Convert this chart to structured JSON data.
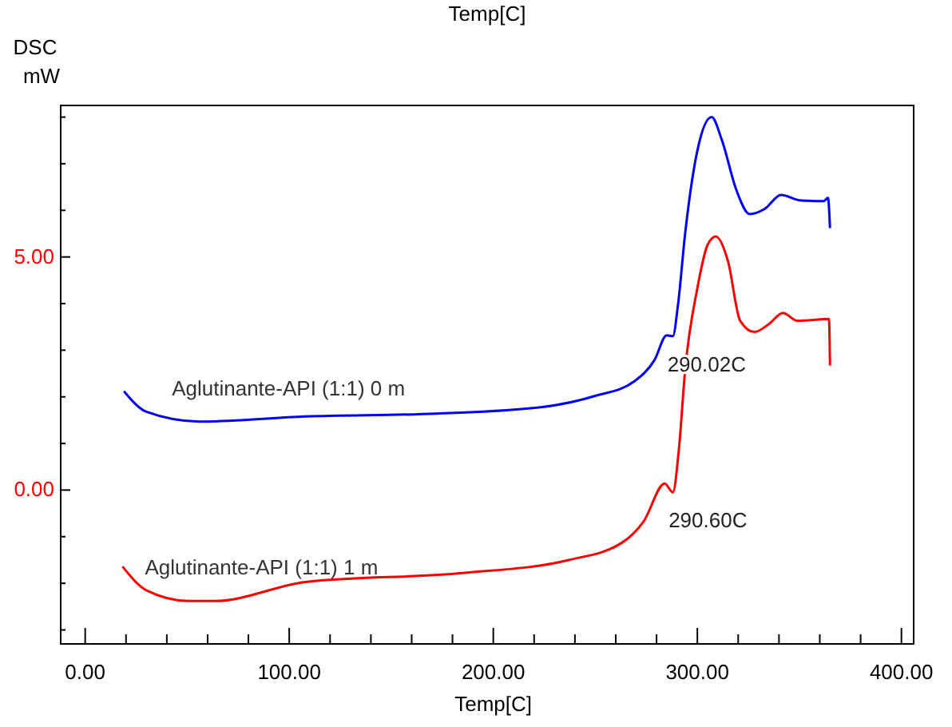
{
  "chart_data": {
    "type": "line",
    "xlabel": "Temp[C]",
    "x2label": "Temp[C]",
    "ylabel": "DSC\nmW",
    "xlim": [
      -12,
      406
    ],
    "ylim": [
      -3.3,
      8.25
    ],
    "xticks": [
      {
        "value": 0,
        "label": "0.00"
      },
      {
        "value": 20,
        "label": null
      },
      {
        "value": 40,
        "label": null
      },
      {
        "value": 60,
        "label": null
      },
      {
        "value": 80,
        "label": null
      },
      {
        "value": 100,
        "label": "100.00"
      },
      {
        "value": 120,
        "label": null
      },
      {
        "value": 140,
        "label": null
      },
      {
        "value": 160,
        "label": null
      },
      {
        "value": 180,
        "label": null
      },
      {
        "value": 200,
        "label": "200.00"
      },
      {
        "value": 220,
        "label": null
      },
      {
        "value": 240,
        "label": null
      },
      {
        "value": 260,
        "label": null
      },
      {
        "value": 280,
        "label": null
      },
      {
        "value": 300,
        "label": "300.00"
      },
      {
        "value": 320,
        "label": null
      },
      {
        "value": 340,
        "label": null
      },
      {
        "value": 360,
        "label": null
      },
      {
        "value": 380,
        "label": null
      },
      {
        "value": 400,
        "label": "400.00"
      }
    ],
    "yticks": [
      {
        "value": -3,
        "label": null
      },
      {
        "value": -2,
        "label": null
      },
      {
        "value": -1,
        "label": null
      },
      {
        "value": 0,
        "label": "0.00"
      },
      {
        "value": 1,
        "label": null
      },
      {
        "value": 2,
        "label": null
      },
      {
        "value": 3,
        "label": null
      },
      {
        "value": 4,
        "label": null
      },
      {
        "value": 5,
        "label": "5.00"
      },
      {
        "value": 6,
        "label": null
      },
      {
        "value": 7,
        "label": null
      },
      {
        "value": 8,
        "label": null
      }
    ],
    "grid": false,
    "marker": "none",
    "line_style": "solid",
    "series": [
      {
        "name": "Aglutinante-API (1:1) 0 m",
        "color": "#0000ff",
        "x": [
          19,
          30,
          56,
          108,
          172,
          224,
          250,
          269,
          279,
          285,
          288,
          290.5,
          294,
          300,
          307,
          312,
          319,
          325.6,
          333,
          341,
          351,
          362,
          364,
          365
        ],
        "values": [
          2.12,
          1.68,
          1.47,
          1.58,
          1.64,
          1.78,
          2.02,
          2.33,
          2.79,
          3.32,
          3.3,
          3.97,
          5.5,
          7.28,
          8.0,
          7.51,
          6.45,
          5.92,
          6.03,
          6.33,
          6.21,
          6.2,
          6.27,
          5.62
        ]
      },
      {
        "name": "Aglutinante-API (1:1) 1 m",
        "color": "#ff0000",
        "x": [
          18.3,
          30,
          50.7,
          63.5,
          108,
          185,
          237,
          263,
          273.7,
          284,
          288,
          291,
          294,
          300,
          305,
          309,
          315,
          321,
          328,
          335,
          342,
          349,
          364.5,
          365
        ],
        "values": [
          -1.64,
          -2.15,
          -2.38,
          -2.38,
          -1.97,
          -1.78,
          -1.5,
          -1.13,
          -0.67,
          0.14,
          -0.05,
          0.9,
          2.57,
          4.33,
          5.26,
          5.44,
          4.91,
          3.63,
          3.39,
          3.56,
          3.8,
          3.63,
          3.67,
          2.67
        ]
      }
    ],
    "annotations": [
      {
        "text": "290.02C",
        "x": 290.02,
        "y": 3.3
      },
      {
        "text": "290.60C",
        "x": 290.6,
        "y": -0.05
      }
    ]
  }
}
